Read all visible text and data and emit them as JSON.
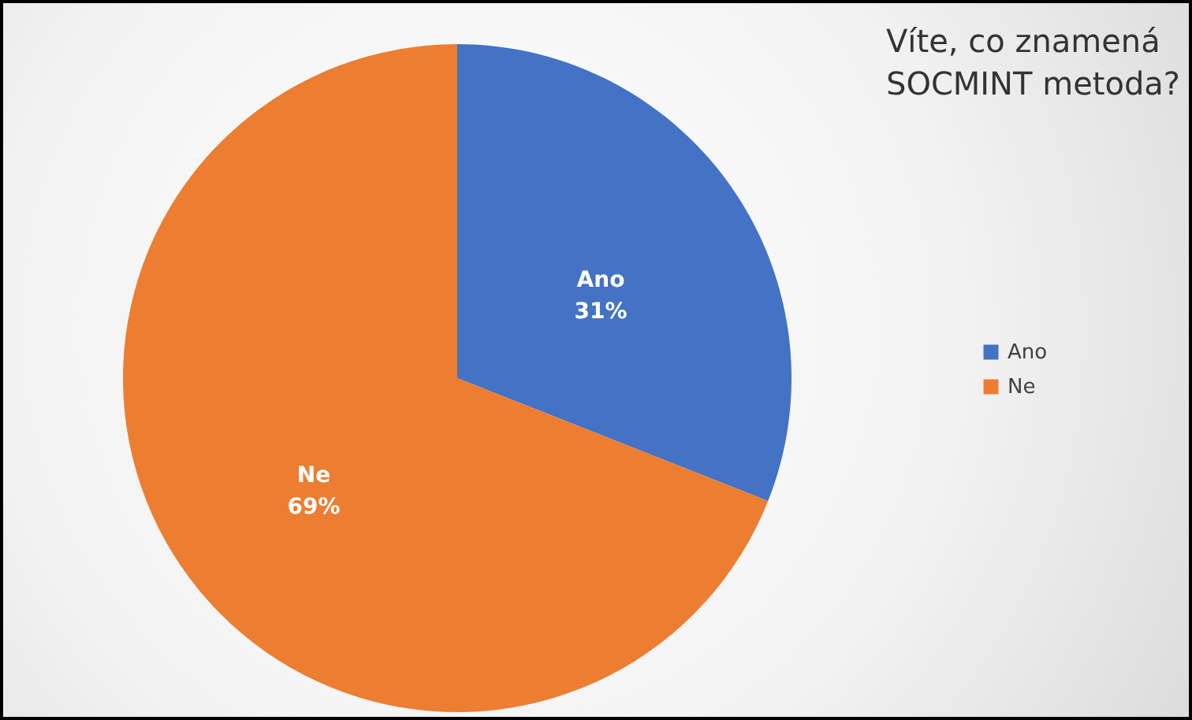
{
  "chart_data": {
    "type": "pie",
    "title": "Víte, co znamená SOCMINT metoda?",
    "categories": [
      "Ano",
      "Ne"
    ],
    "values": [
      31,
      69
    ],
    "value_labels": [
      "31%",
      "69%"
    ],
    "colors": [
      "#4472c4",
      "#ed7d31"
    ],
    "legend": "right"
  }
}
